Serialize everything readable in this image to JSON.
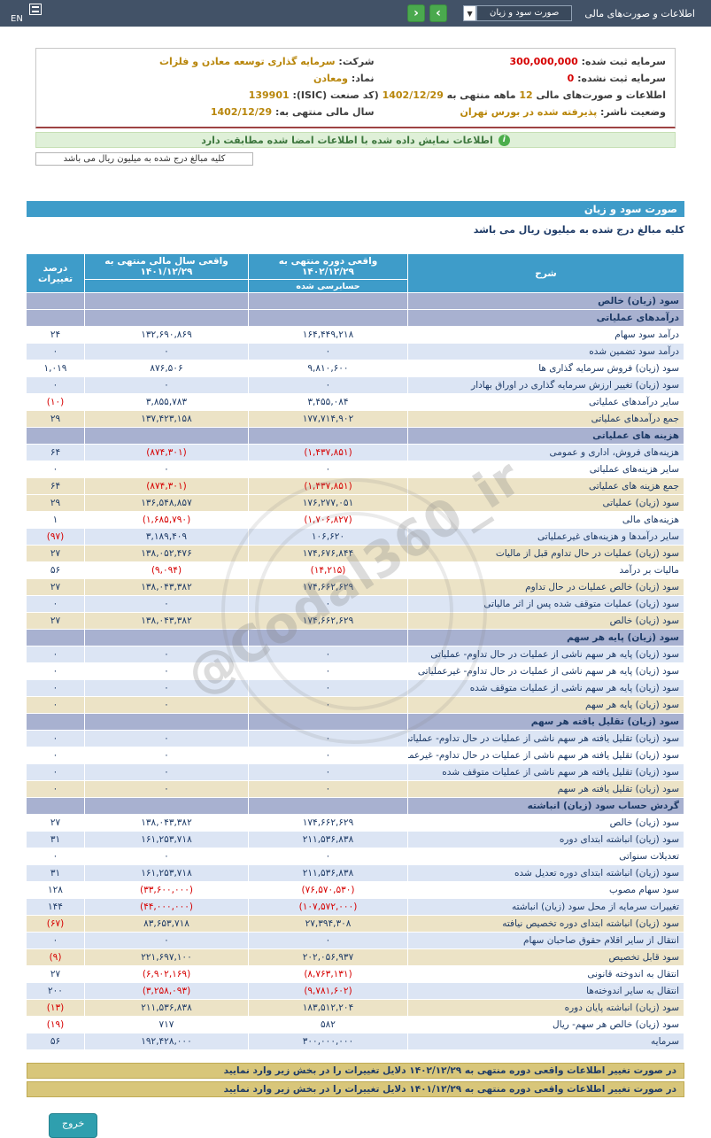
{
  "colors": {
    "topbar_bg": "#425267",
    "nav_green": "#4aa94e",
    "table_header_blue": "#3e9cc9",
    "section_row_bg": "#a8b1d0",
    "row_alt_blue": "#dce5f4",
    "row_highlight_cream": "#ece3c6",
    "negative_red": "#d60000",
    "value_navy": "#1d3a66",
    "info_gold": "#b8860b",
    "notice_bg": "#dff0d8",
    "notice_text": "#3c763d",
    "note_khaki": "#d8c67a",
    "exit_teal": "#2f9fae",
    "watermark_gray": "rgba(128,128,128,0.28)"
  },
  "topbar": {
    "menu_label": "اطلاعات و صورت‌های مالی",
    "statement_select_value": "صورت سود و زیان",
    "caret_icon": "▼",
    "nav_right": "›",
    "nav_left": "‹",
    "lang_label": "EN"
  },
  "company_info": {
    "rows": [
      {
        "right": [
          {
            "t": "سرمایه ثبت شده: ",
            "c": "label"
          },
          {
            "t": "300,000,000",
            "c": "red"
          }
        ],
        "left": [
          {
            "t": "شرکت: ",
            "c": "label"
          },
          {
            "t": "سرمایه گذاری توسعه معادن و فلزات",
            "c": "gold"
          }
        ]
      },
      {
        "right": [
          {
            "t": "سرمایه ثبت نشده: ",
            "c": "label"
          },
          {
            "t": "0",
            "c": "red"
          }
        ],
        "left": [
          {
            "t": "نماد: ",
            "c": "label"
          },
          {
            "t": "ومعادن",
            "c": "gold"
          }
        ]
      },
      {
        "right": [
          {
            "t": "اطلاعات و صورت‌های مالی ",
            "c": "label"
          },
          {
            "t": "12",
            "c": "gold"
          },
          {
            "t": " ماهه منتهی به ",
            "c": "label"
          },
          {
            "t": "1402/12/29",
            "c": "gold"
          },
          {
            "t": " (حسابرسی شده)",
            "c": "label"
          }
        ],
        "left": [
          {
            "t": "کد صنعت (ISIC): ",
            "c": "label"
          },
          {
            "t": "139901",
            "c": "gold"
          }
        ]
      },
      {
        "right": [
          {
            "t": "وضعیت ناشر: ",
            "c": "label"
          },
          {
            "t": "پذیرفته شده در بورس تهران",
            "c": "gold"
          }
        ],
        "left": [
          {
            "t": "سال مالی منتهی به: ",
            "c": "label"
          },
          {
            "t": "1402/12/29",
            "c": "gold"
          }
        ]
      }
    ]
  },
  "notice": {
    "icon_glyph": "i",
    "text": "اطلاعات نمایش داده شده با اطلاعات امضا شده مطابقت دارد"
  },
  "unit_note": {
    "amounts_note": "کلیه مبالغ درج شده به میلیون ریال می باشد"
  },
  "statement_title": "صورت سود و زیان",
  "statement_table": {
    "header": {
      "col_desc": "شرح",
      "col_current": "واقعی دوره منتهی به ۱۴۰۲/۱۲/۲۹",
      "col_prior": "واقعی سال مالی منتهی به ۱۴۰۱/۱۲/۲۹",
      "col_change": "درصد تغییرات",
      "sub_audited": "حسابرسی شده"
    },
    "rows": [
      {
        "type": "section",
        "label": "سود (زیان) خالص"
      },
      {
        "type": "section",
        "label": "درآمدهای عملیاتی"
      },
      {
        "type": "data",
        "bg": "white",
        "label": "درآمد سود سهام",
        "current": "۱۶۴,۴۴۹,۲۱۸",
        "prior": "۱۳۲,۶۹۰,۸۶۹",
        "change": "۲۴"
      },
      {
        "type": "data",
        "bg": "blue",
        "label": "درآمد سود تضمین شده",
        "current": "۰",
        "prior": "۰",
        "change": "۰"
      },
      {
        "type": "data",
        "bg": "white",
        "label": "سود (زیان) فروش سرمایه گذاری ها",
        "current": "۹,۸۱۰,۶۰۰",
        "prior": "۸۷۶,۵۰۶",
        "change": "۱,۰۱۹"
      },
      {
        "type": "data",
        "bg": "blue",
        "label": "سود (زیان) تغییر ارزش سرمایه گذاری در اوراق بهادار",
        "current": "۰",
        "prior": "۰",
        "change": "۰"
      },
      {
        "type": "data",
        "bg": "white",
        "label": "سایر درآمدهای عملیاتی",
        "current": "۳,۴۵۵,۰۸۴",
        "prior": "۳,۸۵۵,۷۸۳",
        "change": "(۱۰)"
      },
      {
        "type": "data",
        "bg": "cream",
        "label": "جمع درآمدهای عملیاتی",
        "current": "۱۷۷,۷۱۴,۹۰۲",
        "prior": "۱۳۷,۴۲۳,۱۵۸",
        "change": "۲۹"
      },
      {
        "type": "section",
        "label": "هزینه های عملیاتی"
      },
      {
        "type": "data",
        "bg": "blue",
        "label": "هزینه‌های فروش، اداری و عمومی",
        "current": "(۱,۴۳۷,۸۵۱)",
        "prior": "(۸۷۴,۳۰۱)",
        "change": "۶۴"
      },
      {
        "type": "data",
        "bg": "white",
        "label": "سایر هزینه‌های عملیاتی",
        "current": "۰",
        "prior": "۰",
        "change": "۰"
      },
      {
        "type": "data",
        "bg": "cream",
        "label": "جمع هزینه های عملیاتی",
        "current": "(۱,۴۳۷,۸۵۱)",
        "prior": "(۸۷۴,۳۰۱)",
        "change": "۶۴"
      },
      {
        "type": "data",
        "bg": "cream",
        "label": "سود (زیان) عملیاتی",
        "current": "۱۷۶,۲۷۷,۰۵۱",
        "prior": "۱۳۶,۵۴۸,۸۵۷",
        "change": "۲۹"
      },
      {
        "type": "data",
        "bg": "white",
        "label": "هزینه‌های مالی",
        "current": "(۱,۷۰۶,۸۲۷)",
        "prior": "(۱,۶۸۵,۷۹۰)",
        "change": "۱"
      },
      {
        "type": "data",
        "bg": "blue",
        "label": "سایر درآمدها و هزینه‌های غیرعملیاتی",
        "current": "۱۰۶,۶۲۰",
        "prior": "۳,۱۸۹,۴۰۹",
        "change": "(۹۷)"
      },
      {
        "type": "data",
        "bg": "cream",
        "label": "سود (زیان) عملیات در حال تداوم قبل از مالیات",
        "current": "۱۷۴,۶۷۶,۸۴۴",
        "prior": "۱۳۸,۰۵۲,۴۷۶",
        "change": "۲۷"
      },
      {
        "type": "data",
        "bg": "white",
        "label": "مالیات بر درآمد",
        "current": "(۱۴,۲۱۵)",
        "prior": "(۹,۰۹۴)",
        "change": "۵۶"
      },
      {
        "type": "data",
        "bg": "cream",
        "label": "سود (زیان) خالص عملیات در حال تداوم",
        "current": "۱۷۴,۶۶۲,۶۲۹",
        "prior": "۱۳۸,۰۴۳,۳۸۲",
        "change": "۲۷"
      },
      {
        "type": "data",
        "bg": "blue",
        "label": "سود (زیان) عملیات متوقف شده پس از اثر مالیاتی",
        "current": "۰",
        "prior": "۰",
        "change": "۰"
      },
      {
        "type": "data",
        "bg": "cream",
        "label": "سود (زیان) خالص",
        "current": "۱۷۴,۶۶۲,۶۲۹",
        "prior": "۱۳۸,۰۴۳,۳۸۲",
        "change": "۲۷"
      },
      {
        "type": "section",
        "label": "سود (زیان) پایه هر سهم"
      },
      {
        "type": "data",
        "bg": "blue",
        "label": "سود (زیان) پایه هر سهم ناشی از عملیات در حال تداوم- عملیاتی",
        "current": "۰",
        "prior": "۰",
        "change": "۰"
      },
      {
        "type": "data",
        "bg": "white",
        "label": "سود (زیان) پایه هر سهم ناشی از عملیات در حال تداوم- غیرعملیاتی",
        "current": "۰",
        "prior": "۰",
        "change": "۰"
      },
      {
        "type": "data",
        "bg": "blue",
        "label": "سود (زیان) پایه هر سهم ناشی از عملیات متوقف شده",
        "current": "۰",
        "prior": "۰",
        "change": "۰"
      },
      {
        "type": "data",
        "bg": "cream",
        "label": "سود (زیان) پایه هر سهم",
        "current": "۰",
        "prior": "۰",
        "change": "۰"
      },
      {
        "type": "section",
        "label": "سود (زیان) تقلیل یافته هر سهم"
      },
      {
        "type": "data",
        "bg": "blue",
        "label": "سود (زیان) تقلیل یافته هر سهم ناشی از عملیات در حال تداوم- عملیاتی",
        "current": "۰",
        "prior": "۰",
        "change": "۰"
      },
      {
        "type": "data",
        "bg": "white",
        "label": "سود (زیان) تقلیل یافته هر سهم ناشی از عملیات در حال تداوم- غیرعملیاتی",
        "current": "۰",
        "prior": "۰",
        "change": "۰"
      },
      {
        "type": "data",
        "bg": "blue",
        "label": "سود (زیان) تقلیل یافته هر سهم ناشی از عملیات متوقف شده",
        "current": "۰",
        "prior": "۰",
        "change": "۰"
      },
      {
        "type": "data",
        "bg": "cream",
        "label": "سود (زیان) تقلیل یافته هر سهم",
        "current": "۰",
        "prior": "۰",
        "change": "۰"
      },
      {
        "type": "section",
        "label": "گردش حساب سود (زیان) انباشته"
      },
      {
        "type": "data",
        "bg": "white",
        "label": "سود (زیان) خالص",
        "current": "۱۷۴,۶۶۲,۶۲۹",
        "prior": "۱۳۸,۰۴۳,۳۸۲",
        "change": "۲۷"
      },
      {
        "type": "data",
        "bg": "blue",
        "label": "سود (زیان) انباشته ابتدای دوره",
        "current": "۲۱۱,۵۳۶,۸۳۸",
        "prior": "۱۶۱,۲۵۳,۷۱۸",
        "change": "۳۱"
      },
      {
        "type": "data",
        "bg": "white",
        "label": "تعدیلات سنواتی",
        "current": "۰",
        "prior": "۰",
        "change": "۰"
      },
      {
        "type": "data",
        "bg": "blue",
        "label": "سود (زیان) انباشته ابتدای دوره تعدیل شده",
        "current": "۲۱۱,۵۳۶,۸۳۸",
        "prior": "۱۶۱,۲۵۳,۷۱۸",
        "change": "۳۱"
      },
      {
        "type": "data",
        "bg": "white",
        "label": "سود سهام مصوب",
        "current": "(۷۶,۵۷۰,۵۳۰)",
        "prior": "(۳۳,۶۰۰,۰۰۰)",
        "change": "۱۲۸"
      },
      {
        "type": "data",
        "bg": "blue",
        "label": "تغییرات سرمایه از محل سود (زیان) انباشته",
        "current": "(۱۰۷,۵۷۲,۰۰۰)",
        "prior": "(۴۴,۰۰۰,۰۰۰)",
        "change": "۱۴۴"
      },
      {
        "type": "data",
        "bg": "cream",
        "label": "سود (زیان) انباشته ابتدای دوره تخصیص نیافته",
        "current": "۲۷,۳۹۴,۳۰۸",
        "prior": "۸۳,۶۵۳,۷۱۸",
        "change": "(۶۷)"
      },
      {
        "type": "data",
        "bg": "blue",
        "label": "انتقال از سایر اقلام حقوق صاحبان سهام",
        "current": "۰",
        "prior": "۰",
        "change": "۰"
      },
      {
        "type": "data",
        "bg": "cream",
        "label": "سود قابل تخصیص",
        "current": "۲۰۲,۰۵۶,۹۳۷",
        "prior": "۲۲۱,۶۹۷,۱۰۰",
        "change": "(۹)"
      },
      {
        "type": "data",
        "bg": "white",
        "label": "انتقال به اندوخته قانونی",
        "current": "(۸,۷۶۳,۱۳۱)",
        "prior": "(۶,۹۰۲,۱۶۹)",
        "change": "۲۷"
      },
      {
        "type": "data",
        "bg": "blue",
        "label": "انتقال به سایر اندوخته‌ها",
        "current": "(۹,۷۸۱,۶۰۲)",
        "prior": "(۳,۲۵۸,۰۹۳)",
        "change": "۲۰۰"
      },
      {
        "type": "data",
        "bg": "cream",
        "label": "سود (زیان) انباشته پایان دوره",
        "current": "۱۸۳,۵۱۲,۲۰۴",
        "prior": "۲۱۱,۵۳۶,۸۳۸",
        "change": "(۱۳)"
      },
      {
        "type": "data",
        "bg": "white",
        "label": "سود (زیان) خالص هر سهم- ریال",
        "current": "۵۸۲",
        "prior": "۷۱۷",
        "change": "(۱۹)"
      },
      {
        "type": "data",
        "bg": "blue",
        "label": "سرمایه",
        "current": "۳۰۰,۰۰۰,۰۰۰",
        "prior": "۱۹۲,۴۲۸,۰۰۰",
        "change": "۵۶"
      }
    ]
  },
  "footer_notes": [
    "در صورت تغییر اطلاعات واقعی دوره منتهی به ۱۴۰۲/۱۲/۲۹ دلایل تغییرات را در بخش زیر وارد نمایید",
    "در صورت تغییر اطلاعات واقعی دوره منتهی به ۱۴۰۱/۱۲/۲۹ دلایل تغییرات را در بخش زیر وارد نمایید"
  ],
  "watermark": {
    "text": "@Codal360_ir"
  },
  "exit_button_label": "خروج"
}
